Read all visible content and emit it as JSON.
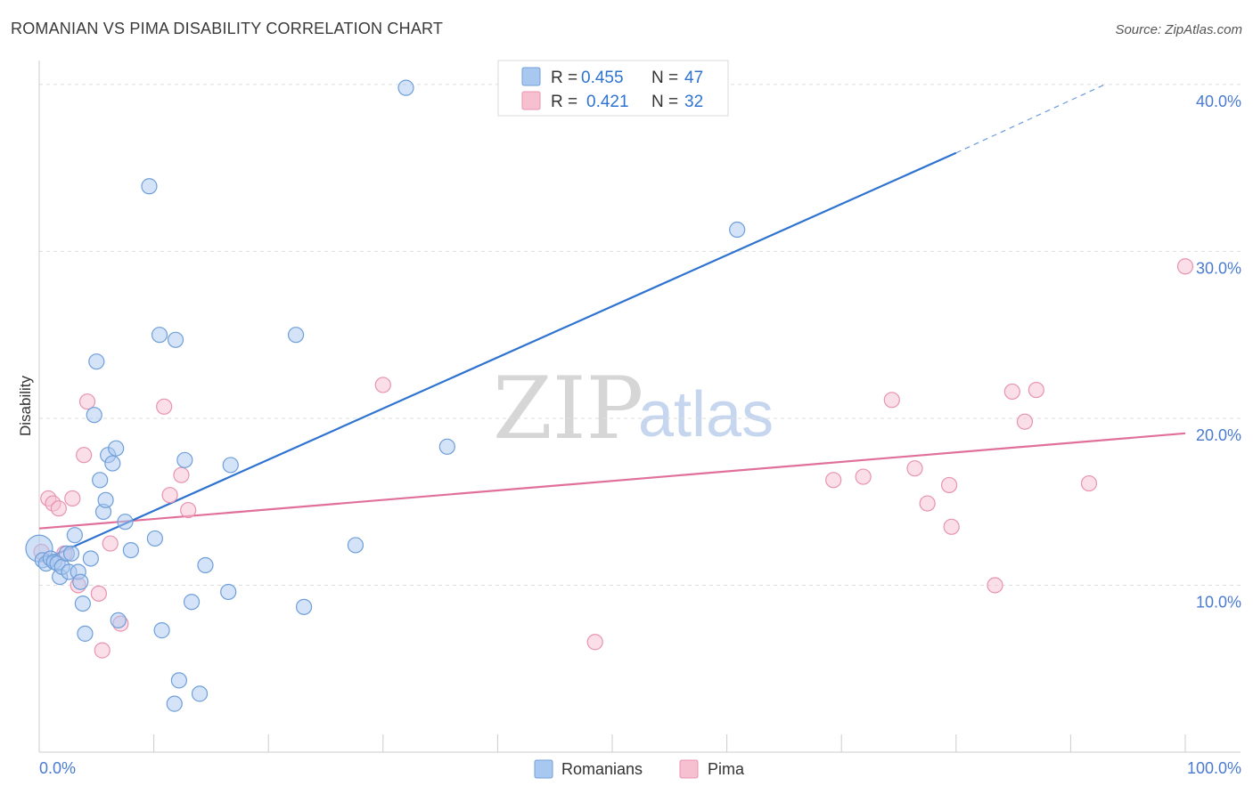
{
  "title": "ROMANIAN VS PIMA DISABILITY CORRELATION CHART",
  "source": "Source: ZipAtlas.com",
  "watermark": {
    "zip": "ZIP",
    "atlas": "atlas"
  },
  "colors": {
    "blue_fill": "#a9c8f0",
    "blue_stroke": "#6f9fd9",
    "blue_line": "#2f73d1",
    "pink_fill": "#f6c0d1",
    "pink_stroke": "#e893b0",
    "pink_line": "#e0709a",
    "grid": "#dddddd",
    "label": "#4a7bd0"
  },
  "legend": {
    "rows": [
      {
        "r_label": "R =",
        "r_value": "0.455",
        "n_label": "N =",
        "n_value": "47",
        "series": "Romanians"
      },
      {
        "r_label": "R =",
        "r_value": "0.421",
        "n_label": "N =",
        "n_value": "32",
        "series": "Pima"
      }
    ]
  },
  "bottom_legend": [
    "Romanians",
    "Pima"
  ],
  "chart_data": {
    "type": "scatter",
    "title": "ROMANIAN VS PIMA DISABILITY CORRELATION CHART",
    "xlabel": "",
    "ylabel": "Disability",
    "xlim": [
      0,
      100
    ],
    "ylim": [
      0,
      40.9
    ],
    "x_tick_labels": [
      {
        "value": 0,
        "label": "0.0%"
      },
      {
        "value": 100,
        "label": "100.0%"
      }
    ],
    "y_tick_labels": [
      {
        "value": 10,
        "label": "10.0%"
      },
      {
        "value": 20,
        "label": "20.0%"
      },
      {
        "value": 30,
        "label": "30.0%"
      },
      {
        "value": 40,
        "label": "40.0%"
      }
    ],
    "series": [
      {
        "name": "Romanians",
        "color": "blue",
        "points": [
          [
            0.0,
            12.2
          ],
          [
            0.3,
            11.5
          ],
          [
            0.6,
            11.3
          ],
          [
            1.0,
            11.6
          ],
          [
            1.3,
            11.4
          ],
          [
            1.6,
            11.3
          ],
          [
            1.8,
            10.5
          ],
          [
            2.0,
            11.1
          ],
          [
            2.4,
            11.9
          ],
          [
            2.6,
            10.8
          ],
          [
            2.8,
            11.9
          ],
          [
            3.1,
            13.0
          ],
          [
            3.4,
            10.8
          ],
          [
            3.6,
            10.2
          ],
          [
            3.8,
            8.9
          ],
          [
            4.0,
            7.1
          ],
          [
            4.5,
            11.6
          ],
          [
            4.8,
            20.2
          ],
          [
            5.0,
            23.4
          ],
          [
            5.3,
            16.3
          ],
          [
            5.6,
            14.4
          ],
          [
            5.8,
            15.1
          ],
          [
            6.0,
            17.8
          ],
          [
            6.4,
            17.3
          ],
          [
            6.7,
            18.2
          ],
          [
            6.9,
            7.9
          ],
          [
            7.5,
            13.8
          ],
          [
            8.0,
            12.1
          ],
          [
            9.6,
            33.9
          ],
          [
            10.1,
            12.8
          ],
          [
            10.5,
            25.0
          ],
          [
            10.7,
            7.3
          ],
          [
            11.8,
            2.9
          ],
          [
            11.9,
            24.7
          ],
          [
            12.2,
            4.3
          ],
          [
            12.7,
            17.5
          ],
          [
            13.3,
            9.0
          ],
          [
            14.0,
            3.5
          ],
          [
            14.5,
            11.2
          ],
          [
            16.5,
            9.6
          ],
          [
            16.7,
            17.2
          ],
          [
            22.4,
            25.0
          ],
          [
            23.1,
            8.7
          ],
          [
            27.6,
            12.4
          ],
          [
            32.0,
            39.8
          ],
          [
            35.6,
            18.3
          ],
          [
            60.9,
            31.3
          ]
        ],
        "trend": {
          "x_start": 0,
          "y_start": 11.4,
          "x_end": 80,
          "y_end": 35.9,
          "dash_x_end": 93,
          "dash_y_end": 40.0
        }
      },
      {
        "name": "Pima",
        "color": "pink",
        "points": [
          [
            0.2,
            12.0
          ],
          [
            0.8,
            15.2
          ],
          [
            1.2,
            14.9
          ],
          [
            1.7,
            14.6
          ],
          [
            2.2,
            11.9
          ],
          [
            2.9,
            15.2
          ],
          [
            3.4,
            10.0
          ],
          [
            3.9,
            17.8
          ],
          [
            4.2,
            21.0
          ],
          [
            5.2,
            9.5
          ],
          [
            5.5,
            6.1
          ],
          [
            6.2,
            12.5
          ],
          [
            7.1,
            7.7
          ],
          [
            10.9,
            20.7
          ],
          [
            11.4,
            15.4
          ],
          [
            12.4,
            16.6
          ],
          [
            13.0,
            14.5
          ],
          [
            30.0,
            22.0
          ],
          [
            48.5,
            6.6
          ],
          [
            69.3,
            16.3
          ],
          [
            71.9,
            16.5
          ],
          [
            74.4,
            21.1
          ],
          [
            76.4,
            17.0
          ],
          [
            77.5,
            14.9
          ],
          [
            79.4,
            16.0
          ],
          [
            79.6,
            13.5
          ],
          [
            83.4,
            10.0
          ],
          [
            84.9,
            21.6
          ],
          [
            86.0,
            19.8
          ],
          [
            87.0,
            21.7
          ],
          [
            91.6,
            16.1
          ],
          [
            100.0,
            29.1
          ]
        ],
        "trend": {
          "x_start": 0,
          "y_start": 13.4,
          "x_end": 100,
          "y_end": 19.1
        }
      }
    ]
  }
}
